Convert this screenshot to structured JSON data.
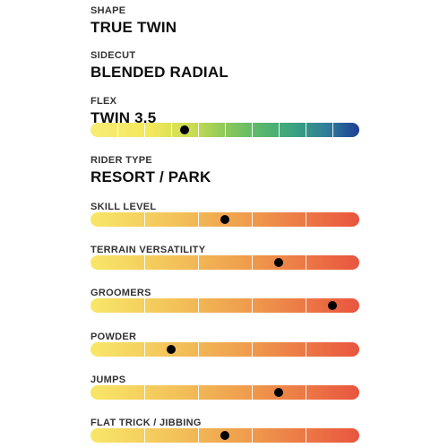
{
  "specs": {
    "shape": {
      "label": "SHAPE",
      "value": "TRUE TWIN"
    },
    "sidecut": {
      "label": "SIDECUT",
      "value": "BLENDED RADIAL"
    },
    "flex": {
      "label": "FLEX",
      "value": "TWIN 3.5",
      "level": 0.35
    },
    "rider_type": {
      "label": "RIDER TYPE",
      "value": "RESORT / PARK"
    }
  },
  "ratings": [
    {
      "label": "SKILL LEVEL",
      "level": 0.5
    },
    {
      "label": "TERRAIN VERSATILITY",
      "level": 0.7
    },
    {
      "label": "GROOMERS",
      "level": 0.9
    },
    {
      "label": "POWDER",
      "level": 0.3
    },
    {
      "label": "JUMPS",
      "level": 0.7
    },
    {
      "label": "FLAT TRICK / JIBBING",
      "level": 0.5
    }
  ],
  "colors": {
    "flex_scale": [
      "#f8ec74",
      "#8ec95a",
      "#3aa57e",
      "#1e3f95"
    ],
    "rating_scale": [
      "#f8e768",
      "#f3c45a",
      "#ef9a4c",
      "#e9553f"
    ],
    "marker": "#000000"
  }
}
